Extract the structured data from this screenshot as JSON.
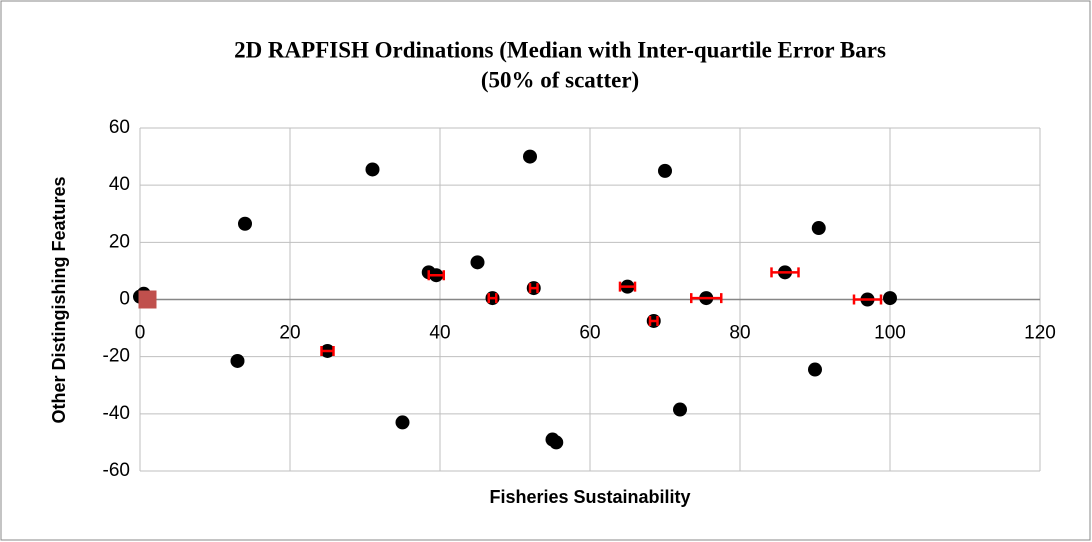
{
  "chart_data": {
    "type": "scatter",
    "title": [
      "2D RAPFISH Ordinations (Median with Inter-quartile Error Bars",
      "(50% of scatter)"
    ],
    "xlabel": "Fisheries Sustainability",
    "ylabel": "Other Distingishing Features",
    "xlim": [
      0,
      120
    ],
    "xticks": [
      0,
      20,
      40,
      60,
      80,
      100,
      120
    ],
    "ylim": [
      -60,
      60
    ],
    "yticks": [
      -60,
      -40,
      -20,
      0,
      20,
      40,
      60
    ],
    "grid": true,
    "series": [
      {
        "color": "#000000",
        "marker": "circle",
        "error_color": "#ff0000",
        "x": [
          0,
          0.5,
          13,
          14,
          25,
          31,
          35,
          38.5,
          39.5,
          45,
          47,
          52,
          52.5,
          55,
          55.5,
          65,
          68.5,
          70,
          72,
          75.5,
          86,
          90,
          90.5,
          97,
          100
        ],
        "values": [
          1,
          2,
          -21.5,
          26.5,
          -18,
          45.5,
          -43,
          9.5,
          8.5,
          13,
          0.5,
          50,
          4,
          -49,
          -50,
          4.5,
          -7.5,
          45,
          -38.5,
          0.5,
          9.5,
          -24.5,
          25,
          0,
          0.5
        ],
        "xerr": [
          null,
          null,
          null,
          null,
          0.8,
          null,
          null,
          null,
          1,
          null,
          0.5,
          null,
          0.5,
          null,
          null,
          1,
          0.5,
          null,
          null,
          2,
          1.8,
          null,
          null,
          1.8,
          null
        ]
      },
      {
        "color": "#c0504d",
        "marker": "square",
        "x": [
          1
        ],
        "values": [
          0
        ]
      }
    ]
  }
}
